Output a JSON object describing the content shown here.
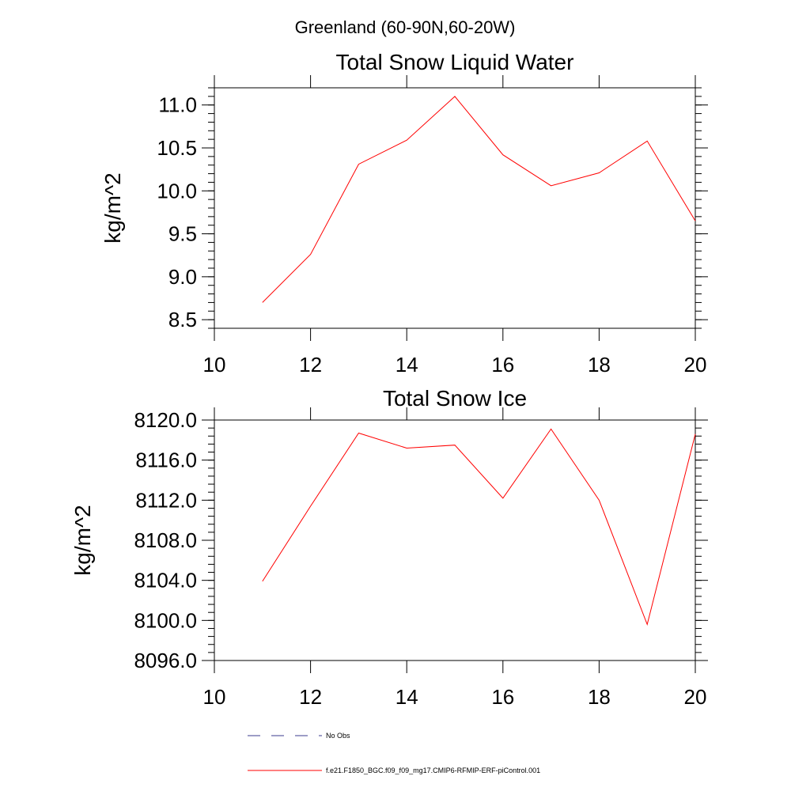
{
  "figure_title": "Greenland (60-90N,60-20W)",
  "legend": {
    "items": [
      {
        "label": "No Obs",
        "style": "dashed",
        "color": "#3b3b8f"
      },
      {
        "label": "f.e21.F1850_BGC.f09_f09_mg17.CMIP6-RFMIP-ERF-piControl.001",
        "style": "solid",
        "color": "#ff0000"
      }
    ]
  },
  "chart_data": [
    {
      "type": "line",
      "title": "Total Snow Liquid Water",
      "xlabel": "",
      "ylabel": "kg/m^2",
      "xlim": [
        10,
        20
      ],
      "ylim": [
        8.4,
        11.2
      ],
      "xticks": [
        10,
        12,
        14,
        16,
        18,
        20
      ],
      "xtick_labels": [
        "10",
        "12",
        "14",
        "16",
        "18",
        "20"
      ],
      "yticks": [
        8.5,
        9.0,
        9.5,
        10.0,
        10.5,
        11.0
      ],
      "ytick_labels": [
        "8.5",
        "9.0",
        "9.5",
        "10.0",
        "10.5",
        "11.0"
      ],
      "grid": false,
      "series": [
        {
          "color": "#ff0000",
          "x": [
            11,
            12,
            13,
            14,
            15,
            16,
            17,
            18,
            19,
            20
          ],
          "y": [
            8.7,
            9.26,
            10.31,
            10.59,
            11.1,
            10.42,
            10.06,
            10.21,
            10.58,
            9.65
          ]
        }
      ]
    },
    {
      "type": "line",
      "title": "Total Snow Ice",
      "xlabel": "",
      "ylabel": "kg/m^2",
      "xlim": [
        10,
        20
      ],
      "ylim": [
        8096.0,
        8120.0
      ],
      "xticks": [
        10,
        12,
        14,
        16,
        18,
        20
      ],
      "xtick_labels": [
        "10",
        "12",
        "14",
        "16",
        "18",
        "20"
      ],
      "yticks": [
        8096.0,
        8100.0,
        8104.0,
        8108.0,
        8112.0,
        8116.0,
        8120.0
      ],
      "ytick_labels": [
        "8096.0",
        "8100.0",
        "8104.0",
        "8108.0",
        "8112.0",
        "8116.0",
        "8120.0"
      ],
      "grid": false,
      "series": [
        {
          "color": "#ff0000",
          "x": [
            11,
            12,
            13,
            14,
            15,
            16,
            17,
            18,
            19,
            20
          ],
          "y": [
            8103.9,
            8111.4,
            8118.7,
            8117.2,
            8117.5,
            8112.2,
            8119.1,
            8112.0,
            8099.6,
            8118.6
          ]
        }
      ]
    }
  ]
}
